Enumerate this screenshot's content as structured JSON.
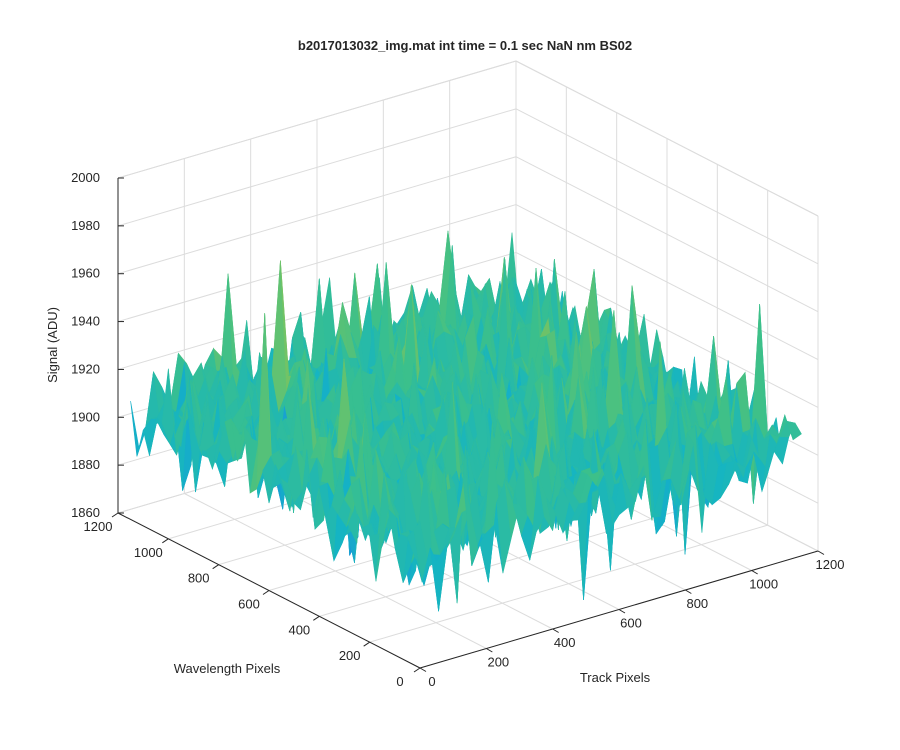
{
  "chart_data": {
    "type": "surface",
    "title": "b2017013032_img.mat int time = 0.1 sec  NaN nm BS02",
    "xlabel": "Track Pixels",
    "ylabel": "Wavelength Pixels",
    "zlabel": "Signal (ADU)",
    "x_ticks": [
      0,
      200,
      400,
      600,
      800,
      1000,
      1200
    ],
    "y_ticks": [
      0,
      200,
      400,
      600,
      800,
      1000,
      1200
    ],
    "z_ticks": [
      1860,
      1880,
      1900,
      1920,
      1940,
      1960,
      1980,
      2000
    ],
    "xlim": [
      0,
      1200
    ],
    "ylim": [
      0,
      1200
    ],
    "zlim": [
      1860,
      2000
    ],
    "grid": true,
    "colormap": "parula",
    "surface_extent": {
      "x": [
        0,
        1150
      ],
      "y": [
        0,
        1150
      ]
    },
    "surface_stats": {
      "mean": 1908,
      "typical_min": 1865,
      "typical_max": 1975,
      "peak_max": 1995
    }
  },
  "colors": {
    "axis": "#262626",
    "grid": "#dcdcdc",
    "colormap_stops": [
      "#0a5fd6",
      "#1d8fde",
      "#14b4c4",
      "#3cc08a",
      "#8cc455",
      "#cfc23a",
      "#e8c630"
    ]
  }
}
